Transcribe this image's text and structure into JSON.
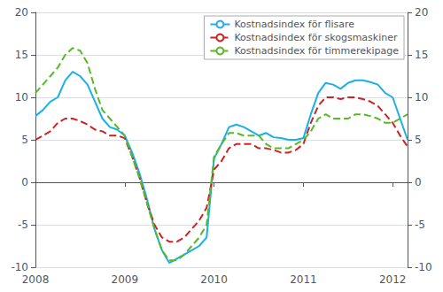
{
  "chart_data": {
    "type": "line",
    "x": [
      2008.0,
      2008.0833,
      2008.1667,
      2008.25,
      2008.3333,
      2008.4167,
      2008.5,
      2008.5833,
      2008.6667,
      2008.75,
      2008.8333,
      2008.9167,
      2009.0,
      2009.0833,
      2009.1667,
      2009.25,
      2009.3333,
      2009.4167,
      2009.5,
      2009.5833,
      2009.6667,
      2009.75,
      2009.8333,
      2009.9167,
      2010.0,
      2010.0833,
      2010.1667,
      2010.25,
      2010.3333,
      2010.4167,
      2010.5,
      2010.5833,
      2010.6667,
      2010.75,
      2010.8333,
      2010.9167,
      2011.0,
      2011.0833,
      2011.1667,
      2011.25,
      2011.3333,
      2011.4167,
      2011.5,
      2011.5833,
      2011.6667,
      2011.75,
      2011.8333,
      2011.9167,
      2012.0,
      2012.0833,
      2012.1667
    ],
    "series": [
      {
        "name": "Kostnadsindex för flisare",
        "color": "#1ab0e8",
        "line_style": "solid",
        "values": [
          7.8,
          8.5,
          9.5,
          10.0,
          12.0,
          13.0,
          12.5,
          11.5,
          9.5,
          7.5,
          6.5,
          6.2,
          5.5,
          3.5,
          1.0,
          -2.0,
          -5.5,
          -8.0,
          -9.5,
          -9.0,
          -8.5,
          -8.0,
          -7.5,
          -6.5,
          2.8,
          4.5,
          6.5,
          6.8,
          6.5,
          6.0,
          5.5,
          5.8,
          5.3,
          5.2,
          5.0,
          5.0,
          5.2,
          8.0,
          10.5,
          11.7,
          11.5,
          11.0,
          11.7,
          12.0,
          12.0,
          11.8,
          11.5,
          10.5,
          10.0,
          7.5,
          5.0
        ]
      },
      {
        "name": "Kostnadsindex för skogsmaskiner",
        "color": "#cc2222",
        "line_style": "dashed",
        "values": [
          5.0,
          5.5,
          6.0,
          7.0,
          7.5,
          7.5,
          7.2,
          6.8,
          6.2,
          6.0,
          5.5,
          5.5,
          5.2,
          3.0,
          0.5,
          -2.5,
          -5.0,
          -6.5,
          -7.0,
          -7.0,
          -6.5,
          -5.5,
          -4.5,
          -3.0,
          1.5,
          2.5,
          4.0,
          4.5,
          4.5,
          4.5,
          4.0,
          4.0,
          3.8,
          3.5,
          3.5,
          3.8,
          4.5,
          7.0,
          9.0,
          10.0,
          10.0,
          9.8,
          10.0,
          10.0,
          9.8,
          9.5,
          9.0,
          8.0,
          7.0,
          5.5,
          4.2
        ]
      },
      {
        "name": "Kostnadsindex för timmerekipage",
        "color": "#55bb22",
        "line_style": "dashed",
        "values": [
          10.5,
          11.5,
          12.5,
          13.5,
          15.0,
          15.8,
          15.5,
          14.0,
          11.0,
          8.5,
          7.5,
          6.5,
          5.5,
          3.0,
          0.5,
          -2.5,
          -5.5,
          -8.0,
          -9.2,
          -9.2,
          -8.5,
          -7.5,
          -6.5,
          -5.0,
          3.0,
          4.5,
          5.8,
          5.8,
          5.5,
          5.5,
          5.5,
          4.5,
          4.0,
          4.0,
          4.0,
          4.5,
          5.0,
          6.0,
          7.5,
          8.0,
          7.5,
          7.5,
          7.5,
          8.0,
          8.0,
          7.8,
          7.5,
          7.0,
          7.0,
          7.5,
          8.0
        ]
      }
    ],
    "xlim": [
      2008.0,
      2012.1667
    ],
    "xticks": [
      2008,
      2009,
      2010,
      2011,
      2012
    ],
    "ylim": [
      -10,
      20
    ],
    "yticks": [
      -10,
      -5,
      0,
      5,
      10,
      15,
      20
    ],
    "y2lim": [
      -10,
      20
    ],
    "y2ticks": [
      -10,
      -5,
      0,
      5,
      10,
      15,
      20
    ],
    "grid": true,
    "legend": "upper right"
  }
}
